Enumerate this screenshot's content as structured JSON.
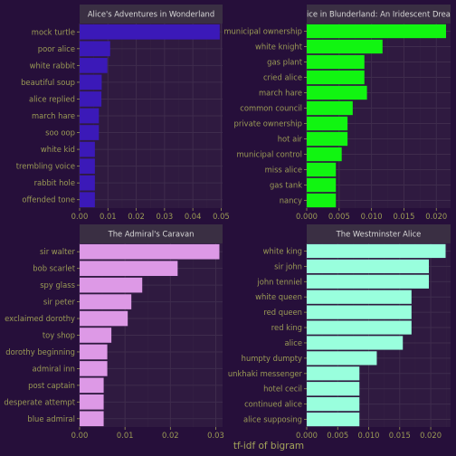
{
  "chart_data": {
    "type": "bar",
    "orientation": "horizontal",
    "xlabel": "tf-idf of bigram",
    "grid": true,
    "colors": {
      "background": "#260f3a",
      "panel": "#2f1a40",
      "strip": "#3a2f43",
      "grid_major": "#3f2c4d",
      "grid_minor": "#342143",
      "text": "#9a9a55"
    },
    "panels": [
      {
        "title": "Alice's Adventures in Wonderland",
        "color": "#3b19b8",
        "xlim": [
          0,
          0.0505
        ],
        "xticks": [
          0,
          0.01,
          0.02,
          0.03,
          0.04,
          0.05
        ],
        "xtick_labels": [
          "0.00",
          "0.01",
          "0.02",
          "0.03",
          "0.04",
          "0.05"
        ],
        "categories": [
          "mock turtle",
          "poor alice",
          "white rabbit",
          "beautiful soup",
          "alice replied",
          "march hare",
          "soo oop",
          "white kid",
          "trembling voice",
          "rabbit hole",
          "offended tone"
        ],
        "values": [
          0.0495,
          0.0108,
          0.0098,
          0.0078,
          0.0077,
          0.0068,
          0.0068,
          0.0054,
          0.0054,
          0.0054,
          0.0054
        ]
      },
      {
        "title": "Alice in Blunderland: An Iridescent Dream",
        "color": "#11f511",
        "xlim": [
          0,
          0.0222
        ],
        "xticks": [
          0,
          0.005,
          0.01,
          0.015,
          0.02
        ],
        "xtick_labels": [
          "0.000",
          "0.005",
          "0.010",
          "0.015",
          "0.020"
        ],
        "categories": [
          "municipal ownership",
          "white knight",
          "gas plant",
          "cried alice",
          "march hare",
          "common council",
          "private ownership",
          "hot air",
          "municipal control",
          "miss alice",
          "gas tank",
          "nancy"
        ],
        "values": [
          0.0215,
          0.0117,
          0.0089,
          0.0089,
          0.0093,
          0.0071,
          0.0063,
          0.0063,
          0.0054,
          0.0045,
          0.0045,
          0.0045
        ]
      },
      {
        "title": "The Admiral's Caravan",
        "color": "#dd99e6",
        "xlim": [
          0,
          0.0315
        ],
        "xticks": [
          0,
          0.01,
          0.02,
          0.03
        ],
        "xtick_labels": [
          "0.00",
          "0.01",
          "0.02",
          "0.03"
        ],
        "categories": [
          "sir walter",
          "bob scarlet",
          "spy glass",
          "sir peter",
          "exclaimed dorothy",
          "toy shop",
          "dorothy beginning",
          "admiral inn",
          "post captain",
          "desperate attempt",
          "blue admiral"
        ],
        "values": [
          0.0308,
          0.0216,
          0.0138,
          0.0114,
          0.0106,
          0.007,
          0.0061,
          0.0061,
          0.0053,
          0.0053,
          0.0053
        ]
      },
      {
        "title": "The Westminster Alice",
        "color": "#99ffdd",
        "xlim": [
          0,
          0.0232
        ],
        "xticks": [
          0,
          0.005,
          0.01,
          0.015,
          0.02
        ],
        "xtick_labels": [
          "0.000",
          "0.005",
          "0.010",
          "0.015",
          "0.020"
        ],
        "categories": [
          "white king",
          "sir john",
          "john tenniel",
          "white queen",
          "red queen",
          "red king",
          "alice",
          "humpty dumpty",
          "unkhaki messenger",
          "hotel cecil",
          "continued alice",
          "alice supposing"
        ],
        "values": [
          0.0224,
          0.0197,
          0.0197,
          0.0169,
          0.0169,
          0.0169,
          0.0155,
          0.0113,
          0.0085,
          0.0085,
          0.0085,
          0.0085
        ]
      }
    ]
  }
}
